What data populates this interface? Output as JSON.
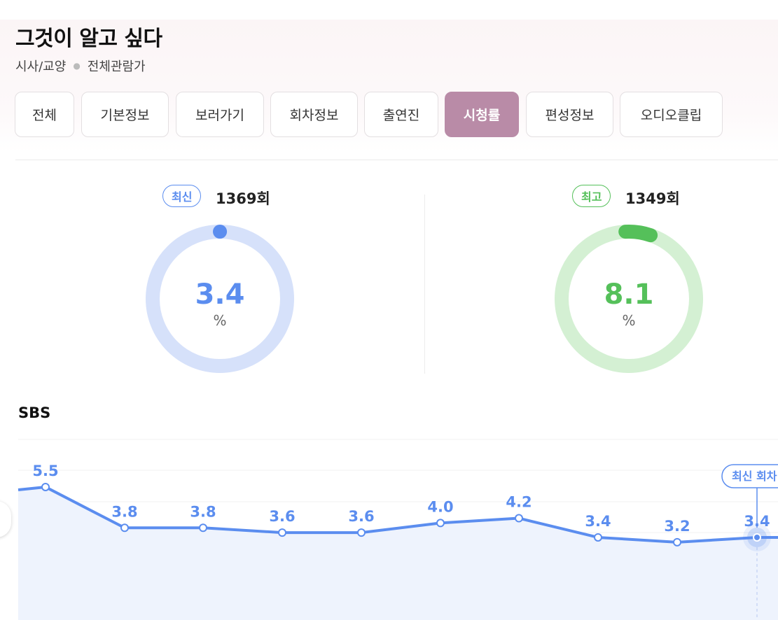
{
  "program": {
    "title": "그것이 알고 싶다",
    "genre": "시사/교양",
    "rating_age": "전체관람가"
  },
  "tabs": [
    {
      "label": "전체",
      "active": false
    },
    {
      "label": "기본정보",
      "active": false
    },
    {
      "label": "보러가기",
      "active": false
    },
    {
      "label": "회차정보",
      "active": false
    },
    {
      "label": "출연진",
      "active": false
    },
    {
      "label": "시청률",
      "active": true
    },
    {
      "label": "편성정보",
      "active": false
    },
    {
      "label": "오디오클립",
      "active": false
    }
  ],
  "latest": {
    "badge": "최신",
    "episode": "1369회",
    "rating": "3.4",
    "unit": "%",
    "color": "#5b8def",
    "track_color": "#d6e1fa"
  },
  "best": {
    "badge": "최고",
    "episode": "1349회",
    "rating": "8.1",
    "unit": "%",
    "color": "#55c05a",
    "track_color": "#d4f0d3"
  },
  "network": "SBS",
  "chart_data": {
    "type": "line",
    "series": [
      {
        "values": [
          5.5,
          3.8,
          3.8,
          3.6,
          3.6,
          4.0,
          4.2,
          3.4,
          3.2,
          3.4
        ]
      }
    ],
    "data_labels": [
      "5.5",
      "3.8",
      "3.8",
      "3.6",
      "3.6",
      "4.0",
      "4.2",
      "3.4",
      "3.2",
      "3.4"
    ],
    "annotation": "최신 회차",
    "line_color": "#5b8def",
    "area_color": "#eef3fd",
    "grid": true
  }
}
